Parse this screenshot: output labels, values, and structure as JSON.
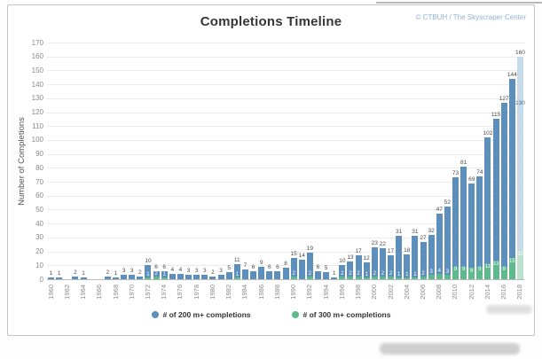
{
  "header": {
    "title": "Completions Timeline",
    "copyright": "© CTBUH / The Skyscraper Center"
  },
  "chart_data": {
    "type": "bar",
    "title": "Completions Timeline",
    "xlabel": "",
    "ylabel": "Number of Completions",
    "ylim": [
      0,
      170
    ],
    "ytick_labels": [
      0,
      10,
      20,
      30,
      40,
      50,
      60,
      70,
      80,
      90,
      100,
      110,
      120,
      130,
      140,
      150,
      160,
      170
    ],
    "grid": true,
    "legend_position": "bottom",
    "x_start": 1960,
    "x_end": 2018,
    "xtick_labels": [
      1960,
      1962,
      1964,
      1966,
      1968,
      1970,
      1972,
      1974,
      1976,
      1978,
      1980,
      1982,
      1984,
      1986,
      1988,
      1990,
      1992,
      1994,
      1996,
      1998,
      2000,
      2002,
      2004,
      2006,
      2008,
      2010,
      2012,
      2014,
      2016,
      2018
    ],
    "series": [
      {
        "name": "# of 200 m+ completions",
        "color": "#5d8fbc",
        "values": [
          1,
          1,
          0,
          2,
          1,
          0,
          0,
          2,
          1,
          3,
          3,
          2,
          10,
          6,
          6,
          4,
          4,
          3,
          3,
          3,
          2,
          3,
          5,
          11,
          7,
          6,
          9,
          6,
          6,
          8,
          15,
          14,
          19,
          6,
          5,
          1,
          10,
          13,
          17,
          12,
          23,
          22,
          17,
          31,
          18,
          31,
          27,
          32,
          47,
          52,
          73,
          81,
          69,
          74,
          102,
          115,
          127,
          144,
          160
        ]
      },
      {
        "name": "# of 300 m+ completions",
        "color": "#5eb98c",
        "values": [
          0,
          0,
          0,
          0,
          0,
          0,
          0,
          0,
          0,
          0,
          0,
          0,
          1,
          2,
          1,
          0,
          0,
          0,
          0,
          0,
          0,
          0,
          0,
          1,
          0,
          0,
          0,
          0,
          0,
          0,
          2,
          0,
          2,
          0,
          0,
          0,
          2,
          2,
          2,
          1,
          2,
          2,
          2,
          1,
          1,
          1,
          2,
          3,
          4,
          3,
          9,
          9,
          8,
          9,
          11,
          13,
          9,
          15,
          20
        ]
      }
    ],
    "projection": {
      "year": 2018,
      "bar_color": "#c6daea",
      "green_color": "#bce1ce",
      "low_value": 130,
      "low_label": "130",
      "top_label": "160"
    }
  },
  "legend": {
    "items": [
      {
        "label": "# of 200 m+ completions",
        "color": "#5d8fbc"
      },
      {
        "label": "# of 300 m+ completions",
        "color": "#5eb98c"
      }
    ]
  },
  "colors": {
    "bar_200m": "#5d8fbc",
    "bar_300m": "#5eb98c",
    "bar_200m_projected": "#c6daea",
    "bar_300m_projected": "#bce1ce",
    "copyright_text": "#92b1d3",
    "value_label": "#4a4a4a"
  }
}
